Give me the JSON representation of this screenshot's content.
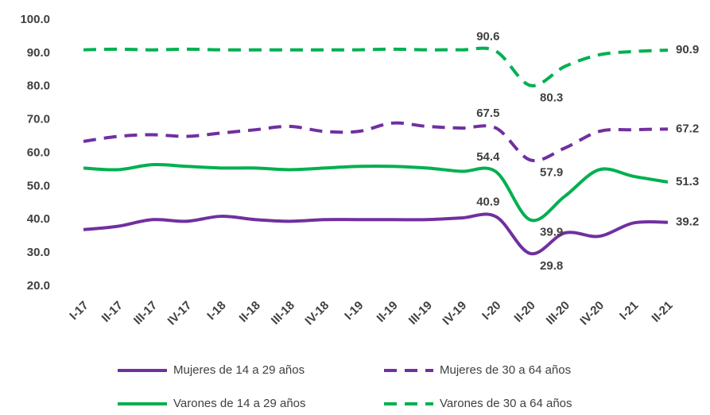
{
  "chart_data": {
    "type": "line",
    "categories": [
      "I-17",
      "II-17",
      "III-17",
      "IV-17",
      "I-18",
      "II-18",
      "III-18",
      "IV-18",
      "I-19",
      "II-19",
      "III-19",
      "IV-19",
      "I-20",
      "II-20",
      "III-20",
      "IV-20",
      "I-21",
      "II-21"
    ],
    "ylim": [
      20,
      100
    ],
    "yticks": [
      {
        "value": 20,
        "label": "20.0"
      },
      {
        "value": 30,
        "label": "30.0"
      },
      {
        "value": 40,
        "label": "40.0"
      },
      {
        "value": 50,
        "label": "50.0"
      },
      {
        "value": 60,
        "label": "60.0"
      },
      {
        "value": 70,
        "label": "70.0"
      },
      {
        "value": 80,
        "label": "80.0"
      },
      {
        "value": 90,
        "label": "90.0"
      },
      {
        "value": 100,
        "label": "100.0"
      }
    ],
    "grid": false,
    "legend": "bottom",
    "series": [
      {
        "name": "Mujeres de 14 a 29 años",
        "color": "#7030a0",
        "dashed": false,
        "values": [
          37,
          38,
          40,
          39.5,
          41,
          40,
          39.5,
          40,
          40,
          40,
          40,
          40.5,
          40.9,
          29.8,
          36,
          35,
          39,
          39.2
        ],
        "value_labels": [
          null,
          null,
          null,
          null,
          null,
          null,
          null,
          null,
          null,
          null,
          null,
          null,
          "40.9",
          "29.8",
          null,
          null,
          null,
          "39.2"
        ]
      },
      {
        "name": "Mujeres de 30 a 64 años",
        "color": "#7030a0",
        "dashed": true,
        "values": [
          63.5,
          65,
          65.5,
          65,
          66,
          67,
          68,
          66.5,
          66.5,
          69,
          68,
          67.5,
          67.5,
          57.9,
          61.5,
          66.5,
          67,
          67.2
        ],
        "value_labels": [
          null,
          null,
          null,
          null,
          null,
          null,
          null,
          null,
          null,
          null,
          null,
          null,
          "67.5",
          "57.9",
          null,
          null,
          null,
          "67.2"
        ]
      },
      {
        "name": "Varones de 14 a 29 años",
        "color": "#00b050",
        "dashed": false,
        "values": [
          55.5,
          55,
          56.5,
          56,
          55.5,
          55.5,
          55,
          55.5,
          56,
          56,
          55.5,
          54.5,
          54.4,
          39.9,
          47,
          55,
          53,
          51.3
        ],
        "value_labels": [
          null,
          null,
          null,
          null,
          null,
          null,
          null,
          null,
          null,
          null,
          null,
          null,
          "54.4",
          "39.9",
          null,
          null,
          null,
          "51.3"
        ]
      },
      {
        "name": "Varones de 30 a 64 años",
        "color": "#00b050",
        "dashed": true,
        "values": [
          91,
          91.2,
          91,
          91.2,
          91,
          91,
          91,
          91,
          91,
          91.2,
          91,
          91,
          90.6,
          80.3,
          86,
          89.5,
          90.5,
          90.9
        ],
        "value_labels": [
          null,
          null,
          null,
          null,
          null,
          null,
          null,
          null,
          null,
          null,
          null,
          null,
          "90.6",
          "80.3",
          null,
          null,
          null,
          "90.9"
        ]
      }
    ]
  }
}
